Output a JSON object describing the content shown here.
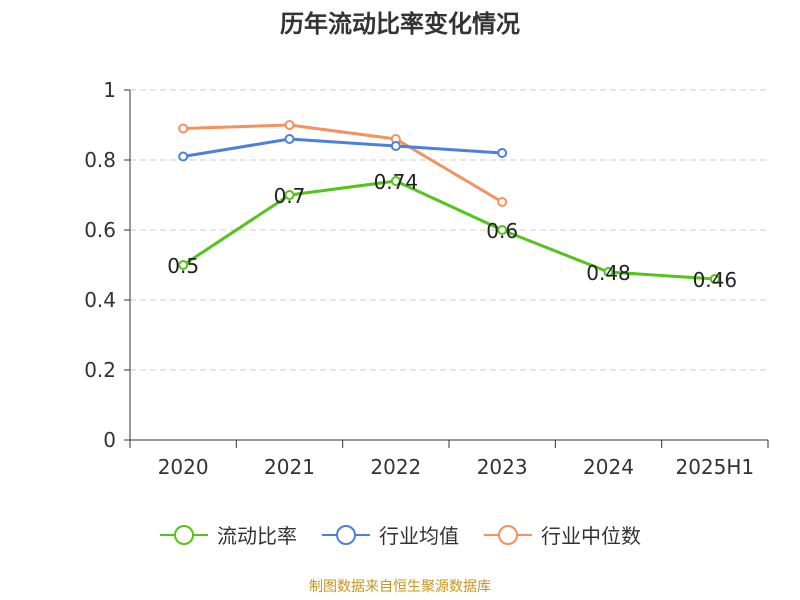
{
  "chart_data": {
    "type": "line",
    "title": "历年流动比率变化情况",
    "categories": [
      "2020",
      "2021",
      "2022",
      "2023",
      "2024",
      "2025H1"
    ],
    "ylim": [
      0,
      1
    ],
    "yticks": [
      "0",
      "0.2",
      "0.4",
      "0.6",
      "0.8",
      "1"
    ],
    "grid": true,
    "legend_position": "bottom",
    "series": [
      {
        "name": "流动比率",
        "values": [
          0.5,
          0.7,
          0.74,
          0.6,
          0.48,
          0.46
        ],
        "labels": [
          "0.5",
          "0.7",
          "0.74",
          "0.6",
          "0.48",
          "0.46"
        ],
        "color": "#52c41a"
      },
      {
        "name": "行业均值",
        "values": [
          0.81,
          0.86,
          0.84,
          0.82,
          null,
          null
        ],
        "color": "#4e7fdc"
      },
      {
        "name": "行业中位数",
        "values": [
          0.89,
          0.9,
          0.86,
          0.68,
          null,
          null
        ],
        "color": "#f4915c"
      }
    ]
  },
  "source_note": "制图数据来自恒生聚源数据库"
}
